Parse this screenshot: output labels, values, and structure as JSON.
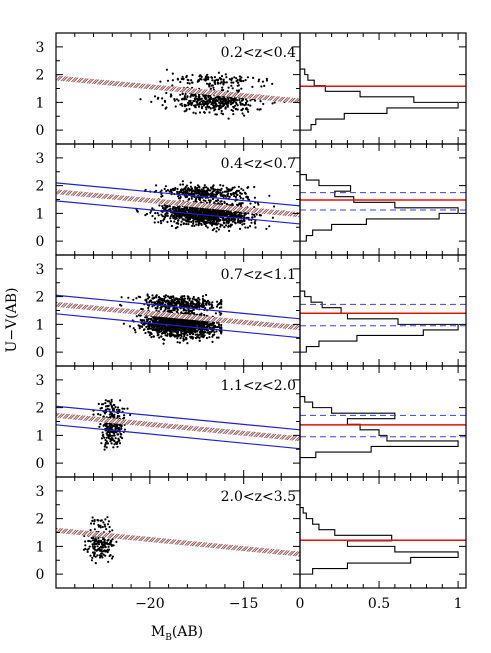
{
  "chart_data": {
    "type": "scatter",
    "ylabel": "U−V(AB)",
    "xlabel_main": "M",
    "xlabel_sub": "B",
    "xlabel_tail": "(AB)",
    "left_xlim": [
      -25,
      -12
    ],
    "left_xticks": [
      -20,
      -15
    ],
    "left_xtick_labels": [
      "−20",
      "−15"
    ],
    "right_xlim": [
      0,
      1.05
    ],
    "right_xticks": [
      0,
      0.5,
      1
    ],
    "right_xtick_labels": [
      "0",
      "0.5",
      "1"
    ],
    "ylim": [
      -0.5,
      3.5
    ],
    "yticks": [
      0,
      1,
      2,
      3
    ],
    "ytick_labels": [
      "0",
      "1",
      "2",
      "3"
    ],
    "colors": {
      "points": "#000000",
      "cmr": "#2222cc",
      "median": "#e01010",
      "dashed": "#3344dd",
      "histogram": "#000000"
    },
    "panels": [
      {
        "label": "0.2<z<0.4",
        "cmr": {
          "x": [
            -25,
            -12
          ],
          "y": [
            1.88,
            1.05
          ]
        },
        "envelope": null,
        "median": 1.58,
        "dashed": [],
        "hist_bins": [
          0.0,
          0.2,
          0.4,
          0.6,
          0.8,
          1.0,
          1.2,
          1.4,
          1.6,
          1.8,
          2.0,
          2.2,
          2.4
        ],
        "hist_freq": [
          0.07,
          0.1,
          0.28,
          0.55,
          1.0,
          0.72,
          0.38,
          0.16,
          0.09,
          0.05,
          0.03
        ],
        "points": {
          "n": 520,
          "mx": [
            -20.5,
            -12.3
          ],
          "cmx": -16.5,
          "sx": 1.8,
          "cy": 1.05,
          "sy": 0.3,
          "slope": -0.03
        }
      },
      {
        "label": "0.4<z<0.7",
        "cmr": {
          "x": [
            -25,
            -12
          ],
          "y": [
            1.78,
            0.95
          ]
        },
        "envelope": {
          "upper": [
            2.1,
            1.27
          ],
          "lower": [
            1.45,
            0.62
          ]
        },
        "median": 1.48,
        "dashed": [
          1.75,
          1.12
        ],
        "hist_bins": [
          0.0,
          0.2,
          0.4,
          0.6,
          0.8,
          1.0,
          1.2,
          1.4,
          1.6,
          1.8,
          2.0,
          2.2,
          2.4,
          2.6
        ],
        "hist_freq": [
          0.04,
          0.08,
          0.2,
          0.42,
          0.88,
          1.0,
          0.6,
          0.34,
          0.22,
          0.32,
          0.12,
          0.04
        ],
        "points": {
          "n": 1500,
          "mx": [
            -22.7,
            -12.7
          ],
          "cmx": -17.0,
          "sx": 1.7,
          "cy": 1.0,
          "sy": 0.3,
          "slope": -0.03
        }
      },
      {
        "label": "0.7<z<1.1",
        "cmr": {
          "x": [
            -25,
            -12
          ],
          "y": [
            1.72,
            0.88
          ]
        },
        "envelope": {
          "upper": [
            2.05,
            1.2
          ],
          "lower": [
            1.38,
            0.52
          ]
        },
        "median": 1.4,
        "dashed": [
          1.72,
          0.95
        ],
        "hist_bins": [
          0.0,
          0.2,
          0.4,
          0.6,
          0.8,
          1.0,
          1.2,
          1.4,
          1.6,
          1.8,
          2.0,
          2.2,
          2.4
        ],
        "hist_freq": [
          0.04,
          0.12,
          0.36,
          0.78,
          1.0,
          0.62,
          0.3,
          0.26,
          0.14,
          0.07,
          0.03
        ],
        "points": {
          "n": 1700,
          "mx": [
            -23.2,
            -16.2
          ],
          "cmx": -18.4,
          "sx": 1.4,
          "cy": 1.0,
          "sy": 0.32,
          "slope": -0.03
        }
      },
      {
        "label": "1.1<z<2.0",
        "cmr": {
          "x": [
            -25,
            -12
          ],
          "y": [
            1.72,
            0.88
          ]
        },
        "envelope": {
          "upper": [
            2.05,
            1.2
          ],
          "lower": [
            1.38,
            0.52
          ]
        },
        "median": 1.38,
        "dashed": [
          1.72,
          0.95
        ],
        "hist_bins": [
          0.2,
          0.4,
          0.6,
          0.8,
          1.0,
          1.2,
          1.4,
          1.6,
          1.8,
          2.0,
          2.2,
          2.4
        ],
        "hist_freq": [
          0.1,
          0.45,
          1.0,
          0.55,
          0.5,
          0.38,
          0.3,
          0.6,
          0.2,
          0.08,
          0.03
        ],
        "points": {
          "n": 260,
          "mx": [
            -23.0,
            -21.0
          ],
          "cmx": -22.0,
          "sx": 0.5,
          "cy": 1.25,
          "sy": 0.38,
          "slope": 0.0
        }
      },
      {
        "label": "2.0<z<3.5",
        "cmr": {
          "x": [
            -25,
            -12
          ],
          "y": [
            1.58,
            0.72
          ]
        },
        "envelope": null,
        "median": 1.22,
        "dashed": [],
        "hist_bins": [
          0.0,
          0.2,
          0.4,
          0.6,
          0.8,
          1.0,
          1.2,
          1.4,
          1.6,
          1.8,
          2.0,
          2.2,
          2.4,
          2.6
        ],
        "hist_freq": [
          0.08,
          0.3,
          0.7,
          1.0,
          0.6,
          0.3,
          0.58,
          0.22,
          0.12,
          0.08,
          0.04,
          0.02
        ],
        "points": {
          "n": 180,
          "mx": [
            -24.0,
            -21.5
          ],
          "cmx": -22.6,
          "sx": 0.55,
          "cy": 1.0,
          "sy": 0.35,
          "slope": 0.0
        }
      }
    ]
  }
}
